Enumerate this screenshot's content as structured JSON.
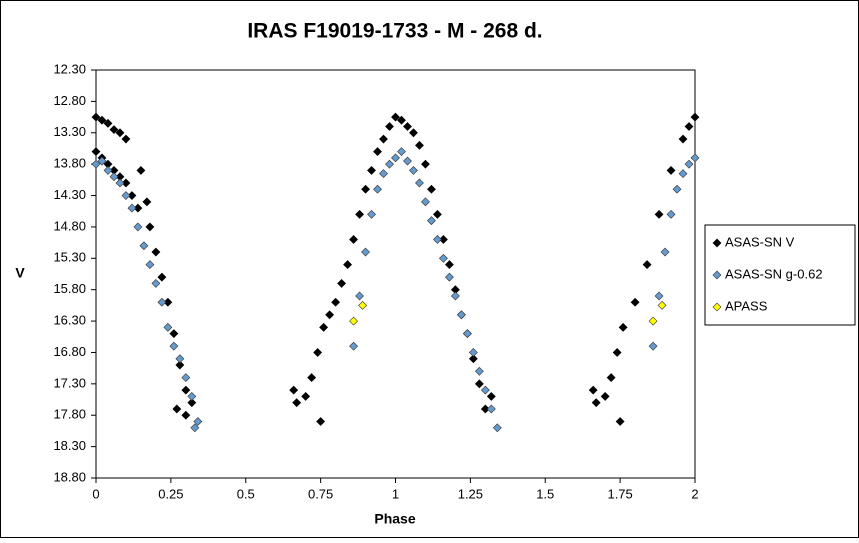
{
  "chart_data": {
    "type": "scatter",
    "title": "IRAS F19019-1733  - M - 268  d.",
    "x_label": "Phase",
    "y_label": "V",
    "xlim": [
      0,
      2
    ],
    "xticks": [
      0,
      0.25,
      0.5,
      0.75,
      1,
      1.25,
      1.5,
      1.75,
      2
    ],
    "ylim": [
      12.3,
      18.8
    ],
    "y_inverted": true,
    "yticks": [
      {
        "value": 12.3,
        "label": "12.30"
      },
      {
        "value": 12.8,
        "label": "12.80"
      },
      {
        "value": 13.3,
        "label": "13.30"
      },
      {
        "value": 13.8,
        "label": "13.80"
      },
      {
        "value": 14.3,
        "label": "14.30"
      },
      {
        "value": 14.8,
        "label": "14.80"
      },
      {
        "value": 15.3,
        "label": "15.30"
      },
      {
        "value": 15.8,
        "label": "15.80"
      },
      {
        "value": 16.3,
        "label": "16.30"
      },
      {
        "value": 16.8,
        "label": "16.80"
      },
      {
        "value": 17.3,
        "label": "17.30"
      },
      {
        "value": 17.8,
        "label": "17.80"
      },
      {
        "value": 18.3,
        "label": "18.30"
      },
      {
        "value": 18.8,
        "label": "18.80"
      }
    ],
    "legend": "right",
    "series": [
      {
        "name": "ASAS-SN V",
        "color": "#000000",
        "x": [
          0.0,
          0.02,
          0.04,
          0.06,
          0.08,
          0.1,
          0.0,
          0.02,
          0.04,
          0.06,
          0.08,
          0.1,
          0.12,
          0.14,
          0.15,
          0.17,
          0.18,
          0.2,
          0.22,
          0.24,
          0.26,
          0.28,
          0.3,
          0.27,
          0.3,
          0.32,
          0.66,
          0.67,
          0.7,
          0.72,
          0.74,
          0.75,
          0.76,
          0.78,
          0.8,
          0.82,
          0.84,
          0.86,
          0.88,
          0.9,
          0.92,
          0.94,
          0.96,
          0.98,
          1.0,
          1.02,
          1.04,
          1.06,
          1.08,
          1.1,
          1.12,
          1.14,
          1.16,
          1.18,
          1.2,
          1.22,
          1.24,
          1.26,
          1.28,
          1.3,
          1.32,
          1.66,
          1.67,
          1.7,
          1.72,
          1.74,
          1.75,
          1.76,
          1.8,
          1.84,
          1.88,
          1.92,
          1.96,
          1.98,
          2.0
        ],
        "values": [
          13.05,
          13.1,
          13.15,
          13.25,
          13.3,
          13.4,
          13.6,
          13.7,
          13.8,
          13.9,
          14.0,
          14.1,
          14.3,
          14.5,
          13.9,
          14.4,
          14.8,
          15.2,
          15.6,
          16.0,
          16.5,
          17.0,
          17.4,
          17.7,
          17.8,
          17.6,
          17.4,
          17.6,
          17.5,
          17.2,
          16.8,
          17.9,
          16.4,
          16.2,
          16.0,
          15.7,
          15.4,
          15.0,
          14.6,
          14.2,
          13.9,
          13.6,
          13.4,
          13.2,
          13.05,
          13.1,
          13.2,
          13.3,
          13.5,
          13.8,
          14.2,
          14.6,
          15.0,
          15.4,
          15.8,
          16.2,
          16.5,
          16.9,
          17.3,
          17.7,
          17.5,
          17.4,
          17.6,
          17.5,
          17.2,
          16.8,
          17.9,
          16.4,
          16.0,
          15.4,
          14.6,
          13.9,
          13.4,
          13.2,
          13.05
        ]
      },
      {
        "name": "ASAS-SN g-0.62",
        "color": "#6699cc",
        "x": [
          0.0,
          0.02,
          0.04,
          0.06,
          0.08,
          0.1,
          0.12,
          0.14,
          0.16,
          0.18,
          0.2,
          0.22,
          0.24,
          0.26,
          0.28,
          0.3,
          0.32,
          0.34,
          0.33,
          0.86,
          0.88,
          0.9,
          0.92,
          0.94,
          0.96,
          0.98,
          1.0,
          1.02,
          1.04,
          1.06,
          1.08,
          1.1,
          1.12,
          1.14,
          1.16,
          1.18,
          1.2,
          1.22,
          1.24,
          1.26,
          1.28,
          1.3,
          1.32,
          1.34,
          1.86,
          1.88,
          1.9,
          1.92,
          1.94,
          1.96,
          1.98,
          2.0
        ],
        "values": [
          13.8,
          13.75,
          13.9,
          14.0,
          14.1,
          14.3,
          14.5,
          14.8,
          15.1,
          15.4,
          15.7,
          16.0,
          16.4,
          16.7,
          16.9,
          17.2,
          17.5,
          17.9,
          18.0,
          16.7,
          15.9,
          15.2,
          14.6,
          14.2,
          13.95,
          13.8,
          13.7,
          13.6,
          13.75,
          13.9,
          14.1,
          14.4,
          14.7,
          15.0,
          15.3,
          15.6,
          15.9,
          16.2,
          16.5,
          16.8,
          17.1,
          17.4,
          17.7,
          18.0,
          16.7,
          15.9,
          15.2,
          14.6,
          14.2,
          13.95,
          13.8,
          13.7
        ]
      },
      {
        "name": "APASS",
        "color": "#ffff00",
        "x": [
          0.86,
          0.89,
          1.86,
          1.89
        ],
        "values": [
          16.3,
          16.05,
          16.3,
          16.05
        ]
      }
    ]
  }
}
